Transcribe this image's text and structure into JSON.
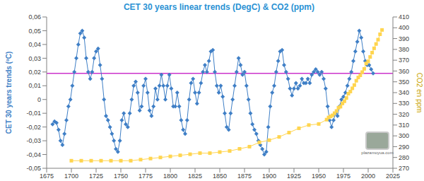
{
  "chart_data": {
    "type": "line",
    "title": "CET 30 years linear trends (DegC) & CO2 (ppm)",
    "y_label": "CET 30 years trends (ºC)",
    "y2_label": "CO2 en ppm",
    "annotations": [
      "plazamoyua.com"
    ],
    "grid": false,
    "xlim": [
      1675,
      2025
    ],
    "xticks": [
      1675,
      1700,
      1725,
      1750,
      1775,
      1800,
      1825,
      1850,
      1875,
      1900,
      1925,
      1950,
      1975,
      2000,
      2025
    ],
    "ylim": [
      -0.05,
      0.06
    ],
    "yticks": [
      {
        "value": -0.05,
        "label": "-0,05"
      },
      {
        "value": -0.04,
        "label": "-0,04"
      },
      {
        "value": -0.03,
        "label": "-0,03"
      },
      {
        "value": -0.02,
        "label": "-0,02"
      },
      {
        "value": -0.01,
        "label": "-0,01"
      },
      0,
      {
        "value": 0.01,
        "label": "0,01"
      },
      {
        "value": 0.02,
        "label": "0,02"
      },
      {
        "value": 0.03,
        "label": "0,03"
      },
      {
        "value": 0.04,
        "label": "0,04"
      },
      {
        "value": 0.05,
        "label": "0,05"
      },
      {
        "value": 0.06,
        "label": "0,06"
      }
    ],
    "y2lim": [
      270,
      410
    ],
    "y2ticks": [
      270,
      280,
      290,
      300,
      310,
      320,
      330,
      340,
      350,
      360,
      370,
      380,
      390,
      400,
      410
    ],
    "reference_line": {
      "value": 0.019,
      "color": "#cc33cc"
    },
    "series": [
      {
        "color": "#3f7fc6",
        "marker": "diamond",
        "x": [
          1681,
          1683,
          1685,
          1687,
          1689,
          1691,
          1693,
          1695,
          1697,
          1699,
          1701,
          1703,
          1705,
          1707,
          1709,
          1711,
          1713,
          1715,
          1717,
          1719,
          1721,
          1723,
          1725,
          1727,
          1729,
          1731,
          1733,
          1735,
          1737,
          1739,
          1741,
          1743,
          1745,
          1747,
          1749,
          1751,
          1753,
          1755,
          1757,
          1759,
          1761,
          1763,
          1765,
          1767,
          1769,
          1771,
          1773,
          1775,
          1777,
          1779,
          1781,
          1783,
          1785,
          1787,
          1789,
          1791,
          1793,
          1795,
          1797,
          1799,
          1801,
          1803,
          1805,
          1807,
          1809,
          1811,
          1813,
          1815,
          1817,
          1819,
          1821,
          1823,
          1825,
          1827,
          1829,
          1831,
          1833,
          1835,
          1837,
          1839,
          1841,
          1843,
          1845,
          1847,
          1849,
          1851,
          1853,
          1855,
          1857,
          1859,
          1861,
          1863,
          1865,
          1867,
          1869,
          1871,
          1873,
          1875,
          1877,
          1879,
          1881,
          1883,
          1885,
          1887,
          1889,
          1891,
          1893,
          1895,
          1897,
          1899,
          1901,
          1903,
          1905,
          1907,
          1909,
          1911,
          1913,
          1915,
          1917,
          1919,
          1921,
          1923,
          1925,
          1927,
          1929,
          1931,
          1933,
          1935,
          1937,
          1939,
          1941,
          1943,
          1945,
          1947,
          1949,
          1951,
          1953,
          1955,
          1957,
          1959,
          1961,
          1963,
          1965,
          1967,
          1969,
          1971,
          1973,
          1975,
          1977,
          1979,
          1981,
          1983,
          1985,
          1987,
          1989,
          1991,
          1993,
          1995,
          1997,
          1999,
          2001,
          2003,
          2005
        ],
        "values": [
          -0.018,
          -0.016,
          -0.017,
          -0.022,
          -0.03,
          -0.033,
          -0.025,
          -0.015,
          -0.005,
          0,
          0.01,
          0.02,
          0.03,
          0.04,
          0.048,
          0.05,
          0.045,
          0.03,
          0.02,
          0.015,
          0.02,
          0.03,
          0.035,
          0.037,
          0.025,
          0.015,
          0,
          -0.012,
          -0.015,
          -0.02,
          -0.025,
          -0.03,
          -0.036,
          -0.038,
          -0.03,
          -0.015,
          -0.01,
          -0.018,
          -0.02,
          -0.01,
          0,
          0.01,
          0.013,
          0.005,
          -0.008,
          -0.005,
          0.01,
          0.015,
          0.005,
          -0.008,
          -0.012,
          -0.005,
          0.008,
          0,
          0.01,
          0.018,
          0.01,
          0,
          0.01,
          0.018,
          0.008,
          -0.005,
          -0.005,
          0.005,
          -0.005,
          -0.015,
          -0.022,
          -0.025,
          -0.015,
          0,
          0.012,
          0.015,
          0.005,
          -0.003,
          0.005,
          0.012,
          0.02,
          0.025,
          0.02,
          0.028,
          0.035,
          0.036,
          0.02,
          0.01,
          0.005,
          0.01,
          0.002,
          -0.01,
          -0.02,
          -0.022,
          -0.01,
          0,
          0.01,
          0.02,
          0.03,
          0.025,
          0.018,
          0.02,
          0.01,
          0,
          -0.01,
          -0.018,
          -0.022,
          -0.025,
          -0.03,
          -0.033,
          -0.036,
          -0.04,
          -0.038,
          -0.02,
          -0.005,
          0.005,
          0.01,
          0.02,
          0.028,
          0.035,
          0.036,
          0.025,
          0.02,
          0.015,
          0.008,
          0.003,
          0.008,
          0.012,
          0.008,
          0.01,
          0.015,
          0.012,
          0.012,
          0.015,
          0.012,
          0.018,
          0.02,
          0.022,
          0.02,
          0.018,
          0.02,
          0.015,
          0.008,
          -0.005,
          -0.015,
          -0.02,
          -0.015,
          -0.01,
          -0.012,
          -0.005,
          0,
          0.002,
          0.005,
          0.01,
          0.015,
          0.02,
          0.028,
          0.035,
          0.042,
          0.05,
          0.045,
          0.035,
          0.028,
          0.025,
          0.025,
          0.022,
          0.019
        ]
      },
      {
        "color": "#ffd54f",
        "marker": "square",
        "axis": "y2",
        "x": [
          1700,
          1710,
          1720,
          1730,
          1740,
          1750,
          1760,
          1770,
          1780,
          1790,
          1800,
          1810,
          1820,
          1830,
          1840,
          1850,
          1860,
          1870,
          1880,
          1890,
          1900,
          1910,
          1920,
          1930,
          1940,
          1950,
          1958,
          1960,
          1962,
          1964,
          1966,
          1968,
          1970,
          1972,
          1974,
          1976,
          1978,
          1980,
          1982,
          1984,
          1986,
          1988,
          1990,
          1992,
          1994,
          1996,
          1998,
          2000,
          2002,
          2004,
          2006,
          2008,
          2010,
          2012,
          2014
        ],
        "values": [
          277,
          277,
          277,
          277,
          277,
          277,
          277,
          278,
          279,
          280,
          281,
          282,
          283,
          284,
          284,
          285,
          286,
          288,
          290,
          294,
          296,
          299,
          303,
          307,
          310,
          311,
          315,
          317,
          318,
          319,
          321,
          323,
          326,
          327,
          330,
          332,
          335,
          339,
          341,
          344,
          347,
          351,
          354,
          356,
          359,
          362,
          367,
          369,
          373,
          377,
          381,
          385,
          389,
          394,
          398
        ]
      }
    ]
  }
}
